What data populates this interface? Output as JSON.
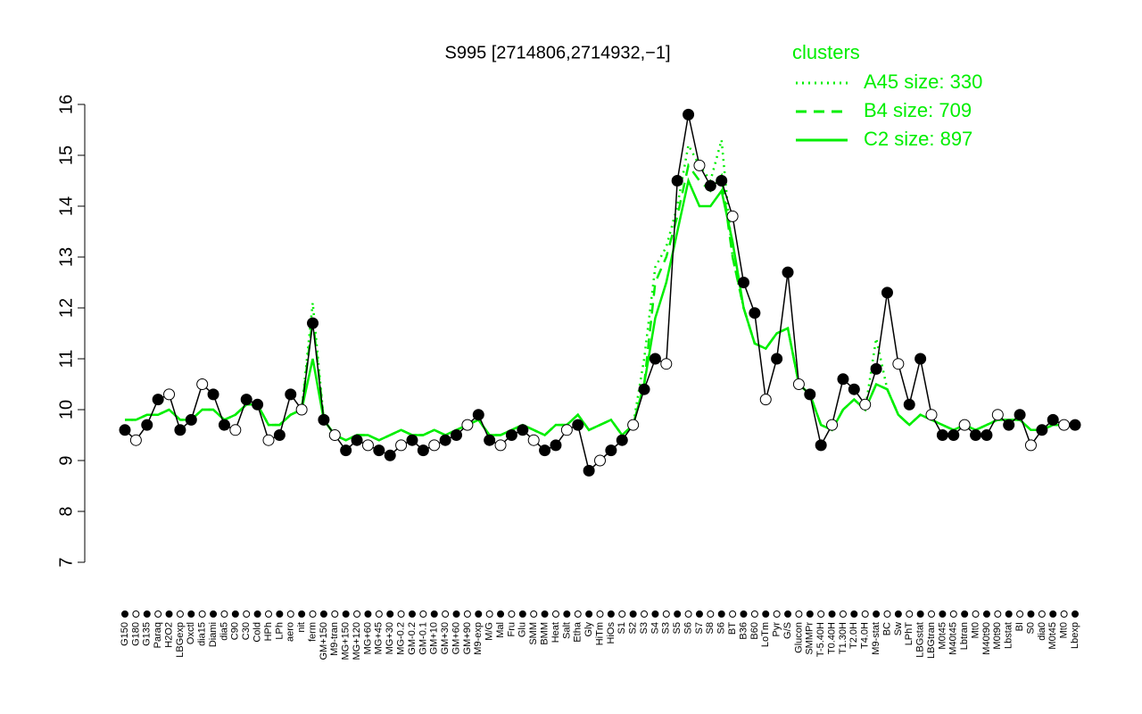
{
  "chart_data": {
    "type": "line",
    "title": "S995 [2714806,2714932,−1]",
    "legend_title": "clusters",
    "legend_position": "top-right",
    "categories": [
      "G150",
      "G180",
      "G135",
      "Paraq",
      "H2O2",
      "LBGexp",
      "Oxctl",
      "dia15",
      "Diami",
      "dia5",
      "C90",
      "C30",
      "Cold",
      "HPh",
      "LPh",
      "aero",
      "nit",
      "ferm",
      "GM+150",
      "M9-tran",
      "MG+150",
      "MG+120",
      "MG+60",
      "MG+45",
      "MG+30",
      "MG-0.2",
      "GM-0.2",
      "GM-0.1",
      "GM+10",
      "GM+30",
      "GM+60",
      "GM+90",
      "M9-exp",
      "M/G",
      "Mal",
      "Fru",
      "Glu",
      "SMM",
      "BMM",
      "Heat",
      "Salt",
      "Etha",
      "Gly",
      "HiTm",
      "HiOs",
      "S1",
      "S2",
      "S3",
      "S4",
      "S3",
      "S5",
      "S6",
      "S7",
      "S8",
      "S6",
      "BT",
      "B36",
      "B60",
      "LoTm",
      "Pyr",
      "G/S",
      "Glucon",
      "SMMPr",
      "T-5.40H",
      "T0.40H",
      "T1.30H",
      "T2.0H",
      "T4.0H",
      "M9-stat",
      "BC",
      "Sw",
      "LPhT",
      "LBGstat",
      "LBGtran",
      "M0t45",
      "M40t45",
      "Lbtran",
      "Mt0",
      "M40t90",
      "M0t90",
      "Lbstat",
      "BI",
      "S0",
      "dia0",
      "M0t45",
      "Mt0",
      "Lbexp"
    ],
    "points": {
      "color": "#000000",
      "values": [
        9.6,
        9.4,
        9.7,
        10.2,
        10.3,
        9.6,
        9.8,
        10.5,
        10.3,
        9.7,
        9.6,
        10.2,
        10.1,
        9.4,
        9.5,
        10.3,
        10.0,
        11.7,
        9.8,
        9.5,
        9.2,
        9.4,
        9.3,
        9.2,
        9.1,
        9.3,
        9.4,
        9.2,
        9.3,
        9.4,
        9.5,
        9.7,
        9.9,
        9.4,
        9.3,
        9.5,
        9.6,
        9.4,
        9.2,
        9.3,
        9.6,
        9.7,
        8.8,
        9.0,
        9.2,
        9.4,
        9.7,
        10.4,
        11.0,
        10.9,
        14.5,
        15.8,
        14.8,
        14.4,
        14.5,
        13.8,
        12.5,
        11.9,
        10.2,
        11.0,
        12.7,
        10.5,
        10.3,
        9.3,
        9.7,
        10.6,
        10.4,
        10.1,
        10.8,
        12.3,
        10.9,
        10.1,
        11.0,
        9.9,
        9.5,
        9.5,
        9.7,
        9.5,
        9.5,
        9.9,
        9.7,
        9.9,
        9.3,
        9.6,
        9.8,
        9.7,
        9.7
      ]
    },
    "series": [
      {
        "name": "A45 size: 330",
        "color": "#00ee00",
        "style": "dotted",
        "values": [
          9.8,
          9.8,
          9.9,
          9.9,
          10.0,
          9.8,
          9.8,
          10.0,
          10.0,
          9.8,
          9.9,
          10.1,
          10.1,
          9.7,
          9.7,
          9.9,
          10.0,
          12.1,
          9.8,
          9.5,
          9.4,
          9.5,
          9.5,
          9.4,
          9.5,
          9.6,
          9.5,
          9.5,
          9.6,
          9.5,
          9.6,
          9.7,
          9.8,
          9.5,
          9.5,
          9.6,
          9.7,
          9.6,
          9.5,
          9.7,
          9.7,
          9.9,
          9.6,
          9.7,
          9.8,
          9.5,
          9.7,
          11.0,
          12.8,
          13.2,
          14.0,
          15.2,
          14.8,
          14.5,
          15.3,
          13.0,
          12.0,
          11.3,
          11.2,
          11.5,
          11.6,
          10.5,
          10.3,
          9.7,
          9.6,
          10.0,
          10.2,
          10.0,
          11.4,
          10.4,
          9.9,
          9.7,
          9.9,
          9.8,
          9.7,
          9.6,
          9.7,
          9.6,
          9.7,
          9.8,
          9.8,
          9.8,
          9.6,
          9.6,
          9.7,
          9.7,
          9.7
        ]
      },
      {
        "name": "B4 size: 709",
        "color": "#00ee00",
        "style": "dashed",
        "values": [
          9.8,
          9.8,
          9.9,
          9.9,
          10.0,
          9.8,
          9.8,
          10.0,
          10.0,
          9.8,
          9.9,
          10.1,
          10.1,
          9.7,
          9.7,
          9.9,
          10.0,
          11.8,
          9.8,
          9.5,
          9.4,
          9.5,
          9.5,
          9.4,
          9.5,
          9.6,
          9.5,
          9.5,
          9.6,
          9.5,
          9.6,
          9.7,
          9.8,
          9.5,
          9.5,
          9.6,
          9.7,
          9.6,
          9.5,
          9.7,
          9.7,
          9.9,
          9.6,
          9.7,
          9.8,
          9.5,
          9.7,
          10.5,
          12.5,
          13.0,
          13.8,
          14.8,
          14.5,
          14.3,
          14.6,
          13.0,
          12.0,
          11.3,
          11.2,
          11.5,
          11.6,
          10.5,
          10.3,
          9.7,
          9.6,
          10.0,
          10.2,
          10.0,
          10.5,
          10.4,
          9.9,
          9.7,
          9.9,
          9.8,
          9.7,
          9.6,
          9.7,
          9.6,
          9.7,
          9.8,
          9.8,
          9.8,
          9.6,
          9.6,
          9.7,
          9.7,
          9.7
        ]
      },
      {
        "name": "C2 size: 897",
        "color": "#00ee00",
        "style": "solid",
        "values": [
          9.8,
          9.8,
          9.9,
          9.9,
          10.0,
          9.8,
          9.8,
          10.0,
          10.0,
          9.8,
          9.9,
          10.1,
          10.1,
          9.7,
          9.7,
          9.9,
          10.0,
          11.0,
          9.8,
          9.5,
          9.4,
          9.5,
          9.5,
          9.4,
          9.5,
          9.6,
          9.5,
          9.5,
          9.6,
          9.5,
          9.6,
          9.7,
          9.8,
          9.5,
          9.5,
          9.6,
          9.7,
          9.6,
          9.5,
          9.7,
          9.7,
          9.9,
          9.6,
          9.7,
          9.8,
          9.5,
          9.7,
          10.5,
          11.8,
          12.5,
          13.5,
          14.5,
          14.0,
          14.0,
          14.3,
          13.3,
          12.0,
          11.3,
          11.2,
          11.5,
          11.6,
          10.5,
          10.3,
          9.7,
          9.6,
          10.0,
          10.2,
          10.0,
          10.5,
          10.4,
          9.9,
          9.7,
          9.9,
          9.8,
          9.7,
          9.6,
          9.7,
          9.6,
          9.7,
          9.8,
          9.8,
          9.8,
          9.6,
          9.6,
          9.7,
          9.7,
          9.7
        ]
      }
    ],
    "ylim": [
      7,
      16
    ],
    "yticks": [
      7,
      8,
      9,
      10,
      11,
      12,
      13,
      14,
      15,
      16
    ]
  }
}
